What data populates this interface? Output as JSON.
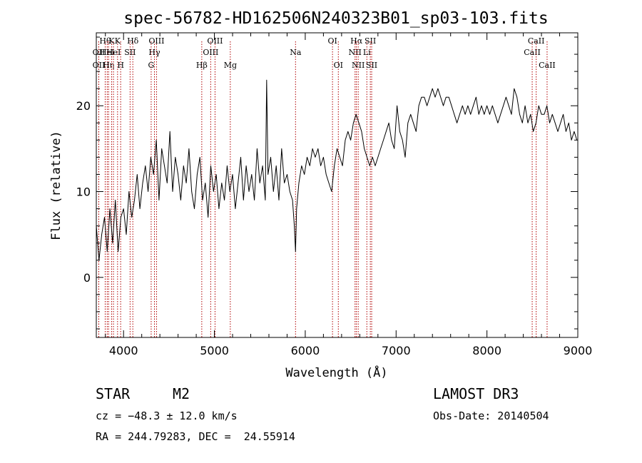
{
  "chart_data": {
    "type": "line",
    "title": "spec-56782-HD162506N240323B01_sp03-103.fits",
    "xlabel": "Wavelength (Å)",
    "ylabel": "Flux (relative)",
    "xlim": [
      3700,
      9000
    ],
    "ylim": [
      -7,
      28.5
    ],
    "xticks": [
      4000,
      5000,
      6000,
      7000,
      8000,
      9000
    ],
    "yticks": [
      0,
      10,
      20
    ],
    "series": [
      {
        "name": "spectrum",
        "x": [
          3700,
          3730,
          3760,
          3790,
          3820,
          3850,
          3880,
          3910,
          3940,
          3970,
          4000,
          4030,
          4060,
          4090,
          4120,
          4150,
          4180,
          4210,
          4240,
          4270,
          4300,
          4330,
          4360,
          4390,
          4420,
          4450,
          4480,
          4510,
          4540,
          4570,
          4600,
          4630,
          4660,
          4690,
          4720,
          4750,
          4780,
          4810,
          4840,
          4870,
          4900,
          4930,
          4960,
          4990,
          5020,
          5050,
          5080,
          5110,
          5140,
          5170,
          5200,
          5230,
          5260,
          5290,
          5320,
          5350,
          5380,
          5410,
          5440,
          5470,
          5500,
          5530,
          5560,
          5575,
          5590,
          5620,
          5650,
          5680,
          5710,
          5740,
          5770,
          5800,
          5830,
          5860,
          5880,
          5893,
          5905,
          5930,
          5960,
          5990,
          6020,
          6050,
          6080,
          6110,
          6140,
          6170,
          6200,
          6230,
          6260,
          6290,
          6320,
          6350,
          6380,
          6410,
          6440,
          6470,
          6500,
          6530,
          6560,
          6590,
          6620,
          6650,
          6680,
          6710,
          6740,
          6770,
          6800,
          6830,
          6860,
          6890,
          6920,
          6950,
          6980,
          7010,
          7040,
          7070,
          7100,
          7130,
          7160,
          7190,
          7220,
          7250,
          7280,
          7310,
          7340,
          7370,
          7400,
          7430,
          7460,
          7490,
          7520,
          7550,
          7580,
          7610,
          7640,
          7670,
          7700,
          7730,
          7760,
          7790,
          7820,
          7850,
          7880,
          7910,
          7940,
          7970,
          8000,
          8030,
          8060,
          8090,
          8120,
          8150,
          8180,
          8210,
          8240,
          8270,
          8300,
          8330,
          8360,
          8390,
          8420,
          8450,
          8480,
          8510,
          8540,
          8570,
          8600,
          8630,
          8660,
          8690,
          8720,
          8750,
          8780,
          8810,
          8840,
          8870,
          8900,
          8930,
          8960,
          8990
        ],
        "values": [
          6,
          2,
          5,
          7,
          3,
          8,
          4,
          9,
          3,
          7,
          8,
          5,
          10,
          7,
          9,
          12,
          8,
          11,
          13,
          10,
          14,
          12,
          16,
          9,
          15,
          13,
          11,
          17,
          10,
          14,
          12,
          9,
          13,
          11,
          15,
          10,
          8,
          12,
          14,
          9,
          11,
          7,
          13,
          10,
          12,
          8,
          11,
          9,
          13,
          10,
          12,
          8,
          11,
          14,
          9,
          13,
          10,
          12,
          9,
          15,
          11,
          13,
          9,
          23,
          12,
          14,
          10,
          13,
          9,
          15,
          11,
          12,
          10,
          9,
          6,
          3,
          8,
          11,
          13,
          12,
          14,
          13,
          15,
          14,
          15,
          13,
          14,
          12,
          11,
          10,
          13,
          15,
          14,
          13,
          16,
          17,
          16,
          18,
          19,
          18,
          17,
          15,
          14,
          13,
          14,
          13,
          14,
          15,
          16,
          17,
          18,
          16,
          15,
          20,
          17,
          16,
          14,
          18,
          19,
          18,
          17,
          20,
          21,
          21,
          20,
          21,
          22,
          21,
          22,
          21,
          20,
          21,
          21,
          20,
          19,
          18,
          19,
          20,
          19,
          20,
          19,
          20,
          21,
          19,
          20,
          19,
          20,
          19,
          20,
          19,
          18,
          19,
          20,
          21,
          20,
          19,
          22,
          21,
          19,
          18,
          20,
          18,
          19,
          17,
          18,
          20,
          19,
          19,
          20,
          18,
          19,
          18,
          17,
          18,
          19,
          17,
          18,
          16,
          17,
          16
        ]
      }
    ],
    "spectral_lines": [
      {
        "x": 3727,
        "label": "OII",
        "row": 2
      },
      {
        "x": 3727,
        "label": "OII",
        "row": 3
      },
      {
        "x": 3798,
        "label": "Hθ",
        "row": 1
      },
      {
        "x": 3820,
        "label": "HeI",
        "row": 2
      },
      {
        "x": 3835,
        "label": "Hη",
        "row": 3
      },
      {
        "x": 3869,
        "label": "K",
        "row": 1
      },
      {
        "x": 3889,
        "label": "HeI",
        "row": 2
      },
      {
        "x": 3934,
        "label": "K",
        "row": 1
      },
      {
        "x": 3968,
        "label": "H",
        "row": 3
      },
      {
        "x": 4072,
        "label": "SII",
        "row": 2
      },
      {
        "x": 4102,
        "label": "Hδ",
        "row": 1
      },
      {
        "x": 4340,
        "label": "Hγ",
        "row": 2
      },
      {
        "x": 4304,
        "label": "G",
        "row": 3
      },
      {
        "x": 4363,
        "label": "OIII",
        "row": 1
      },
      {
        "x": 4861,
        "label": "Hβ",
        "row": 3
      },
      {
        "x": 4959,
        "label": "OIII",
        "row": 2
      },
      {
        "x": 5007,
        "label": "OIII",
        "row": 1
      },
      {
        "x": 5175,
        "label": "Mg",
        "row": 3
      },
      {
        "x": 5893,
        "label": "Na",
        "row": 2
      },
      {
        "x": 6300,
        "label": "OI",
        "row": 1
      },
      {
        "x": 6364,
        "label": "OI",
        "row": 3
      },
      {
        "x": 6548,
        "label": "NII",
        "row": 2
      },
      {
        "x": 6563,
        "label": "Hα",
        "row": 1
      },
      {
        "x": 6583,
        "label": "NII",
        "row": 3
      },
      {
        "x": 6678,
        "label": "Li",
        "row": 2
      },
      {
        "x": 6716,
        "label": "SII",
        "row": 1
      },
      {
        "x": 6731,
        "label": "SII",
        "row": 3
      },
      {
        "x": 8498,
        "label": "CaII",
        "row": 2
      },
      {
        "x": 8542,
        "label": "CaII",
        "row": 1
      },
      {
        "x": 8662,
        "label": "CaII",
        "row": 3
      }
    ]
  },
  "info": {
    "class_label": "STAR",
    "subclass_label": "M2",
    "survey": "LAMOST DR3",
    "cz": "cz = −48.3 ± 12.0 km/s",
    "obs_date": "Obs-Date: 20140504",
    "coords": "RA = 244.79283, DEC =  24.55914"
  },
  "colors": {
    "line_marker": "#b00000",
    "spectrum": "#000000"
  }
}
